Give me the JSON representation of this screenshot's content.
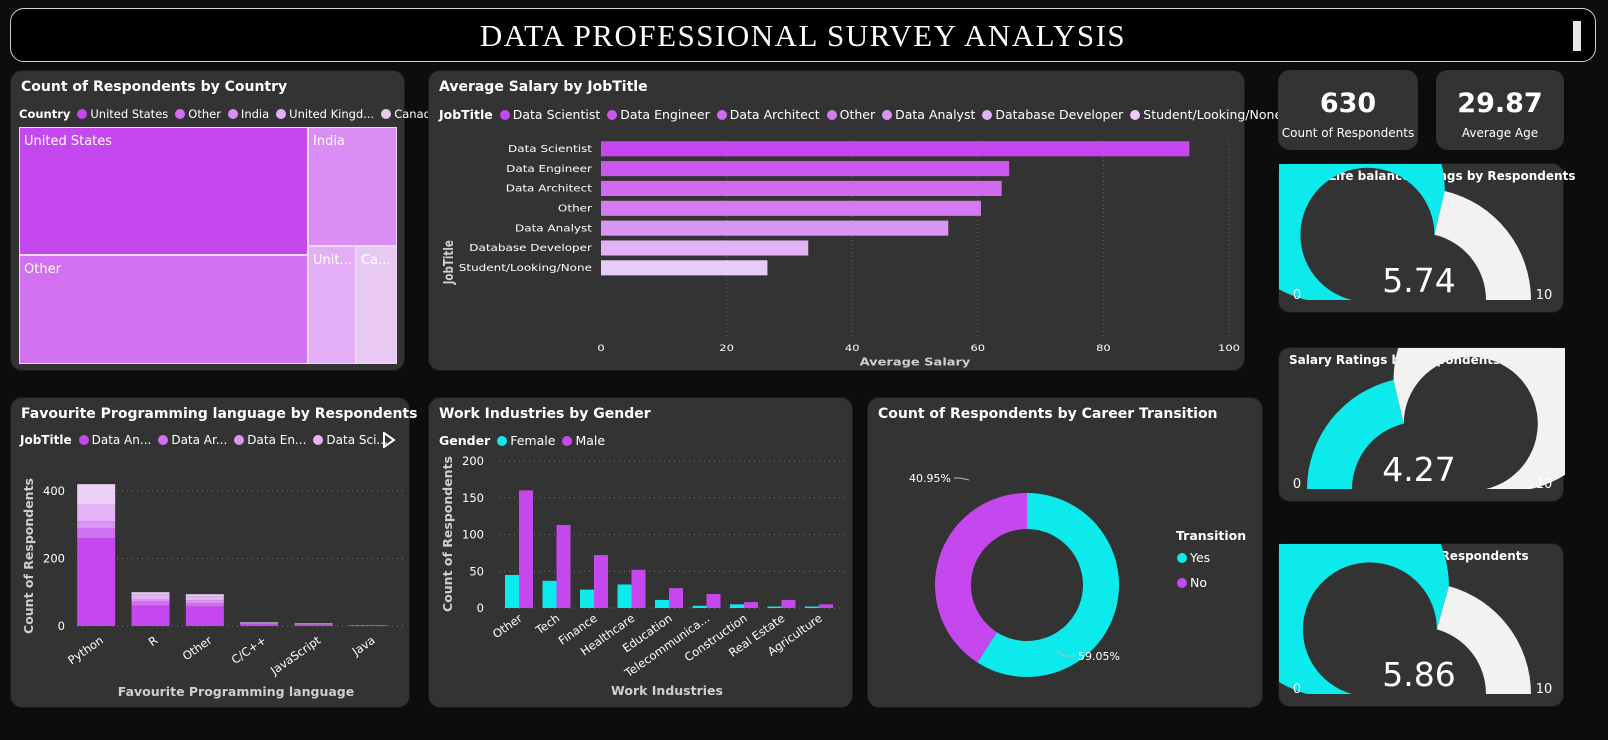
{
  "dashboard_title": "DATA PROFESSIONAL SURVEY ANALYSIS",
  "colors": {
    "cyan": "#0ceaec",
    "magenta": "#c548ee",
    "gauge_rest": "#f2f2f2",
    "panel": "#333333"
  },
  "country": {
    "title": "Count of Respondents by Country",
    "legend_title": "Country",
    "legend": [
      "United States",
      "Other",
      "India",
      "United Kingd...",
      "Canada"
    ],
    "cells": [
      {
        "label": "United States",
        "color": "#c548ee"
      },
      {
        "label": "Other",
        "color": "#d170f0"
      },
      {
        "label": "India",
        "color": "#da8df3"
      },
      {
        "label": "Unit...",
        "color": "#e4aef6"
      },
      {
        "label": "Ca...",
        "color": "#e8c9f4"
      }
    ]
  },
  "kpi": {
    "respondents": {
      "value": "630",
      "label": "Count of Respondents"
    },
    "age": {
      "value": "29.87",
      "label": "Average Age"
    }
  },
  "gauges": [
    {
      "title": "Work/Life balance ratings by Respondents",
      "value": 5.74,
      "display": "5.74",
      "min": 0,
      "max": 10,
      "min_label": "0",
      "max_label": "10"
    },
    {
      "title": "Salary Ratings by Respondents",
      "value": 4.27,
      "display": "4.27",
      "min": 0,
      "max": 10,
      "min_label": "0",
      "max_label": "10"
    },
    {
      "title": "Coworkers Ratings by Respondents",
      "value": 5.86,
      "display": "5.86",
      "min": 0,
      "max": 10,
      "min_label": "0",
      "max_label": "10"
    }
  ],
  "salary": {
    "title": "Average Salary by JobTitle",
    "legend_title": "JobTitle"
  },
  "language": {
    "title": "Favourite Programming language by Respondents",
    "legend_title": "JobTitle",
    "legend": [
      "Data An...",
      "Data Ar...",
      "Data En...",
      "Data Sci..."
    ]
  },
  "industries": {
    "title": "Work Industries by Gender",
    "legend_title": "Gender"
  },
  "career": {
    "title": "Count of Respondents by Career Transition",
    "legend_title": "Transition"
  },
  "chart_data": [
    {
      "type": "treemap",
      "title": "Count of Respondents by Country",
      "categories": [
        "United States",
        "Other",
        "India",
        "United Kingdom",
        "Canada"
      ]
    },
    {
      "type": "bar",
      "orientation": "horizontal",
      "title": "Average Salary by JobTitle",
      "categories": [
        "Data Scientist",
        "Data Engineer",
        "Data Architect",
        "Other",
        "Data Analyst",
        "Database Developer",
        "Student/Looking/None"
      ],
      "values": [
        93.7,
        65.0,
        63.8,
        60.5,
        55.3,
        33.0,
        26.5
      ],
      "colors": [
        "#c548ee",
        "#ca58ef",
        "#d06af0",
        "#d47bf1",
        "#dc94f3",
        "#e2b2f6",
        "#e9ccf5"
      ],
      "xlabel": "Average Salary",
      "ylabel": "JobTitle",
      "xlim": [
        0,
        100
      ],
      "xticks": [
        0,
        20,
        40,
        60,
        80,
        100
      ],
      "grid": true
    },
    {
      "type": "bar",
      "stacked": true,
      "title": "Favourite Programming language by Respondents",
      "categories": [
        "Python",
        "R",
        "Other",
        "C/C++",
        "JavaScript",
        "Java"
      ],
      "series": [
        {
          "name": "Data An...",
          "color": "#c548ee",
          "values": [
            260,
            60,
            58,
            6,
            4,
            1
          ]
        },
        {
          "name": "Data Ar...",
          "color": "#d170f0",
          "values": [
            30,
            12,
            10,
            1,
            1,
            0
          ]
        },
        {
          "name": "Data En...",
          "color": "#dc94f3",
          "values": [
            20,
            8,
            8,
            1,
            1,
            0
          ]
        },
        {
          "name": "",
          "color": "#e4b4f6",
          "values": [
            50,
            14,
            12,
            2,
            1,
            1
          ]
        },
        {
          "name": "",
          "color": "#ecd0f7",
          "values": [
            60,
            6,
            6,
            1,
            1,
            0
          ]
        }
      ],
      "xlabel": "Favourite Programming language",
      "ylabel": "Count of Respondents",
      "ylim": [
        0,
        450
      ],
      "yticks": [
        0,
        200,
        400
      ],
      "grid": true
    },
    {
      "type": "bar",
      "title": "Work Industries by Gender",
      "categories": [
        "Other",
        "Tech",
        "Finance",
        "Healthcare",
        "Education",
        "Telecommunica...",
        "Construction",
        "Real Estate",
        "Agriculture"
      ],
      "series": [
        {
          "name": "Female",
          "color": "#0ceaec",
          "values": [
            45,
            37,
            25,
            32,
            11,
            3,
            5,
            2,
            2
          ]
        },
        {
          "name": "Male",
          "color": "#c548ee",
          "values": [
            160,
            113,
            72,
            52,
            27,
            19,
            8,
            11,
            5
          ]
        }
      ],
      "xlabel": "Work Industries",
      "ylabel": "Count of Respondents",
      "ylim": [
        0,
        200
      ],
      "yticks": [
        0,
        50,
        100,
        150,
        200
      ],
      "grid": true
    },
    {
      "type": "pie",
      "donut": true,
      "title": "Count of Respondents by Career Transition",
      "categories": [
        "Yes",
        "No"
      ],
      "values": [
        59.05,
        40.95
      ],
      "labels": [
        "59.05%",
        "40.95%"
      ],
      "colors": [
        "#0ceaec",
        "#c548ee"
      ],
      "legend_title": "Transition",
      "legend_position": "right"
    }
  ]
}
